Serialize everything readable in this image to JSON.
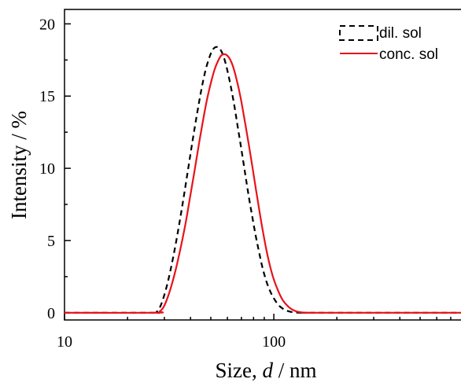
{
  "chart_data": {
    "type": "line",
    "title": "",
    "xlabel": {
      "pre": "Size, ",
      "var": "d",
      "post": " / nm"
    },
    "ylabel": "Intensity / %",
    "xscale": "log",
    "xlim": [
      10,
      900
    ],
    "ylim": [
      -0.5,
      21
    ],
    "xticks_major": [
      10,
      100
    ],
    "xtick_labels": [
      "10",
      "100"
    ],
    "yticks_major": [
      0,
      5,
      10,
      15,
      20
    ],
    "ytick_labels": [
      "0",
      "5",
      "10",
      "15",
      "20"
    ],
    "grid": false,
    "legend_position": "top-right",
    "series": [
      {
        "name": "dil. sol",
        "color": "#000000",
        "dash": "dashed",
        "x": [
          10,
          26,
          27.5,
          29,
          31,
          33,
          35,
          37,
          39,
          41,
          43,
          45,
          47,
          49,
          51,
          53,
          55,
          57,
          59,
          61,
          63,
          65,
          67,
          70,
          73,
          76,
          79,
          82,
          85,
          88,
          92,
          96,
          100,
          105,
          110,
          115,
          120,
          125,
          130,
          137,
          145,
          155,
          900
        ],
        "y": [
          0,
          0,
          0.05,
          0.6,
          2.0,
          3.8,
          5.8,
          7.9,
          10.0,
          12.0,
          13.8,
          15.4,
          16.7,
          17.6,
          18.2,
          18.4,
          18.3,
          17.9,
          17.2,
          16.3,
          15.3,
          14.2,
          13.0,
          11.3,
          9.6,
          8.0,
          6.6,
          5.3,
          4.2,
          3.2,
          2.2,
          1.5,
          1.0,
          0.55,
          0.3,
          0.15,
          0.07,
          0.03,
          0.01,
          0,
          0,
          0,
          0
        ]
      },
      {
        "name": "conc. sol",
        "color": "#e8131b",
        "dash": "solid",
        "x": [
          10,
          27,
          28.5,
          30,
          32,
          34,
          36,
          38,
          40,
          42,
          44,
          46,
          48,
          50,
          52,
          54,
          56,
          58,
          60,
          62,
          64,
          66,
          68,
          70,
          73,
          76,
          79,
          82,
          85,
          88,
          92,
          96,
          100,
          105,
          110,
          115,
          120,
          125,
          130,
          137,
          145,
          155,
          165,
          900
        ],
        "y": [
          0,
          0,
          0.1,
          0.5,
          1.6,
          3.0,
          4.6,
          6.3,
          8.2,
          10.0,
          11.8,
          13.4,
          14.8,
          15.9,
          16.8,
          17.4,
          17.8,
          17.9,
          17.8,
          17.5,
          17.0,
          16.3,
          15.5,
          14.6,
          13.1,
          11.6,
          10.1,
          8.6,
          7.2,
          5.9,
          4.4,
          3.2,
          2.3,
          1.5,
          0.9,
          0.55,
          0.3,
          0.15,
          0.07,
          0.02,
          0,
          0,
          0,
          0
        ]
      }
    ]
  }
}
